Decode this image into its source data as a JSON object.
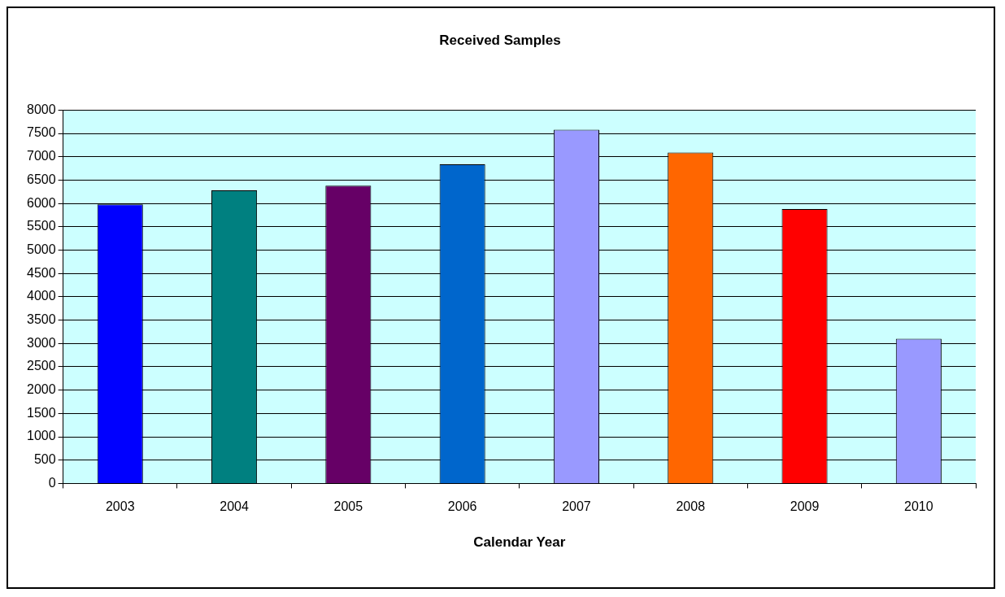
{
  "chart_data": {
    "type": "bar",
    "title": "Received Samples",
    "xlabel": "Calendar Year",
    "categories": [
      "2003",
      "2004",
      "2005",
      "2006",
      "2007",
      "2008",
      "2009",
      "2010"
    ],
    "values": [
      5980,
      6280,
      6380,
      6840,
      7580,
      7090,
      5880,
      3100
    ],
    "colors": [
      "#0000ff",
      "#008080",
      "#660066",
      "#0066cc",
      "#9999ff",
      "#ff6600",
      "#ff0000",
      "#9999ff"
    ],
    "ylim": [
      0,
      8000
    ],
    "yticks": [
      0,
      500,
      1000,
      1500,
      2000,
      2500,
      3000,
      3500,
      4000,
      4500,
      5000,
      5500,
      6000,
      6500,
      7000,
      7500,
      8000
    ],
    "grid": "y",
    "legend": false
  }
}
